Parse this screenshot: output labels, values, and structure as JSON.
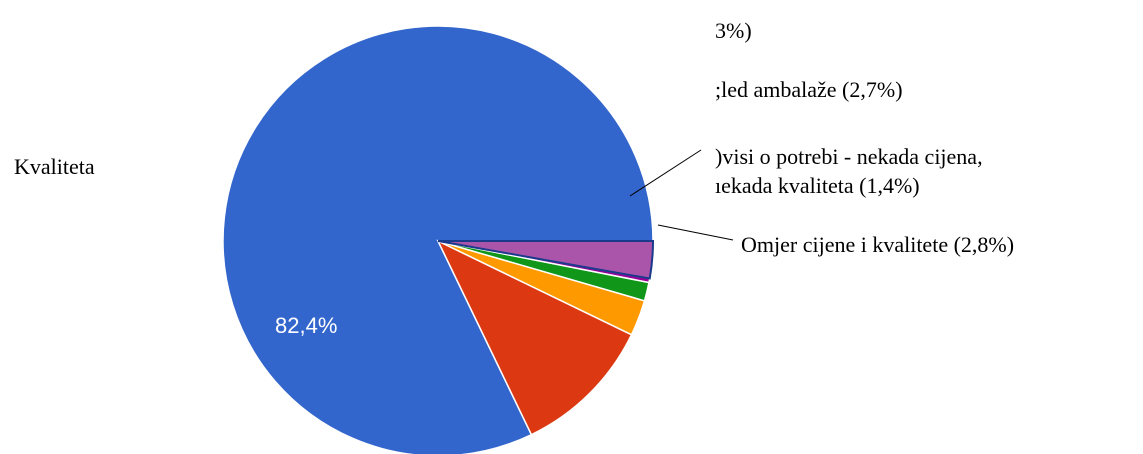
{
  "chart_data": {
    "type": "pie",
    "slices": [
      {
        "label": "Kvaliteta",
        "value": 82.4,
        "color": "#3366cc",
        "data_label": "82,4%"
      },
      {
        "label": "",
        "value": 10.7,
        "color": "#dc3912"
      },
      {
        "label": "",
        "value": 2.7,
        "color": "#ff9900"
      },
      {
        "label": "",
        "value": 1.4,
        "color": "#109618"
      },
      {
        "label": "",
        "value": 0.3,
        "color": "#990099"
      },
      {
        "label": "Omjer cijene i kvalitete (2,8%)",
        "value": 2.8,
        "color": "#aa55aa",
        "edge_color": "#1a3a8c"
      }
    ],
    "legend": {
      "label_kvaliteta": "Kvaliteta",
      "label_8pct": "3%)",
      "label_izgled": ";led ambalaže (2,7%)",
      "label_ovisi_line1": ")visi o potrebi - nekada cijena,",
      "label_ovisi_line2": "ıekada kvaliteta (1,4%)",
      "label_omjer": "Omjer cijene i kvalitete (2,8%)"
    }
  }
}
